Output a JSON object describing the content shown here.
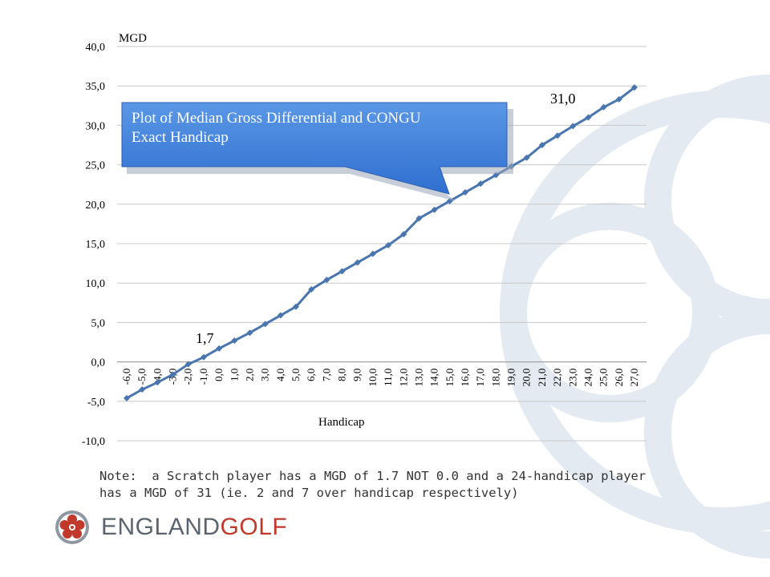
{
  "chart_data": {
    "type": "line",
    "x_axis_title": "Handicap",
    "y_axis_title": "MGD",
    "ylim": [
      -10,
      40
    ],
    "y_ticks": [
      "-10,0",
      "-5,0",
      "0,0",
      "5,0",
      "10,0",
      "15,0",
      "20,0",
      "25,0",
      "30,0",
      "35,0",
      "40,0"
    ],
    "categories": [
      "-6,0",
      "-5,0",
      "-4,0",
      "-3,0",
      "-2,0",
      "-1,0",
      "0,0",
      "1,0",
      "2,0",
      "3,0",
      "4,0",
      "5,0",
      "6,0",
      "7,0",
      "8,0",
      "9,0",
      "10,0",
      "11,0",
      "12,0",
      "13,0",
      "14,0",
      "15,0",
      "16,0",
      "17,0",
      "18,0",
      "19,0",
      "20,0",
      "21,0",
      "22,0",
      "23,0",
      "24,0",
      "25,0",
      "26,0",
      "27,0"
    ],
    "series": [
      {
        "values": [
          -4.6,
          -3.5,
          -2.6,
          -1.6,
          -0.3,
          0.6,
          1.7,
          2.7,
          3.7,
          4.8,
          5.9,
          7.0,
          9.2,
          10.4,
          11.5,
          12.6,
          13.7,
          14.8,
          16.2,
          18.2,
          19.3,
          20.4,
          21.5,
          22.6,
          23.7,
          24.8,
          25.9,
          27.5,
          28.7,
          29.9,
          31.0,
          32.3,
          33.3,
          34.8
        ],
        "color": "#4a76b0"
      }
    ],
    "annotations": [
      {
        "text": "1,7",
        "category": "0,0"
      },
      {
        "text": "31,0",
        "category": "24,0"
      }
    ],
    "callout": {
      "text_line1": "Plot of Median Gross Differential and CONGU",
      "text_line2": "Exact Handicap"
    },
    "grid": "horizontal"
  },
  "note": "Note:  a Scratch player has a MGD of 1.7 NOT 0.0 and a 24-handicap player\nhas a MGD of 31 (ie. 2 and 7 over handicap respectively)",
  "brand": {
    "part1": "ENGLAND",
    "part2": "GOLF",
    "color_primary": "#5b6570",
    "color_accent": "#c0392b",
    "logo_icon": "rose-icon"
  }
}
